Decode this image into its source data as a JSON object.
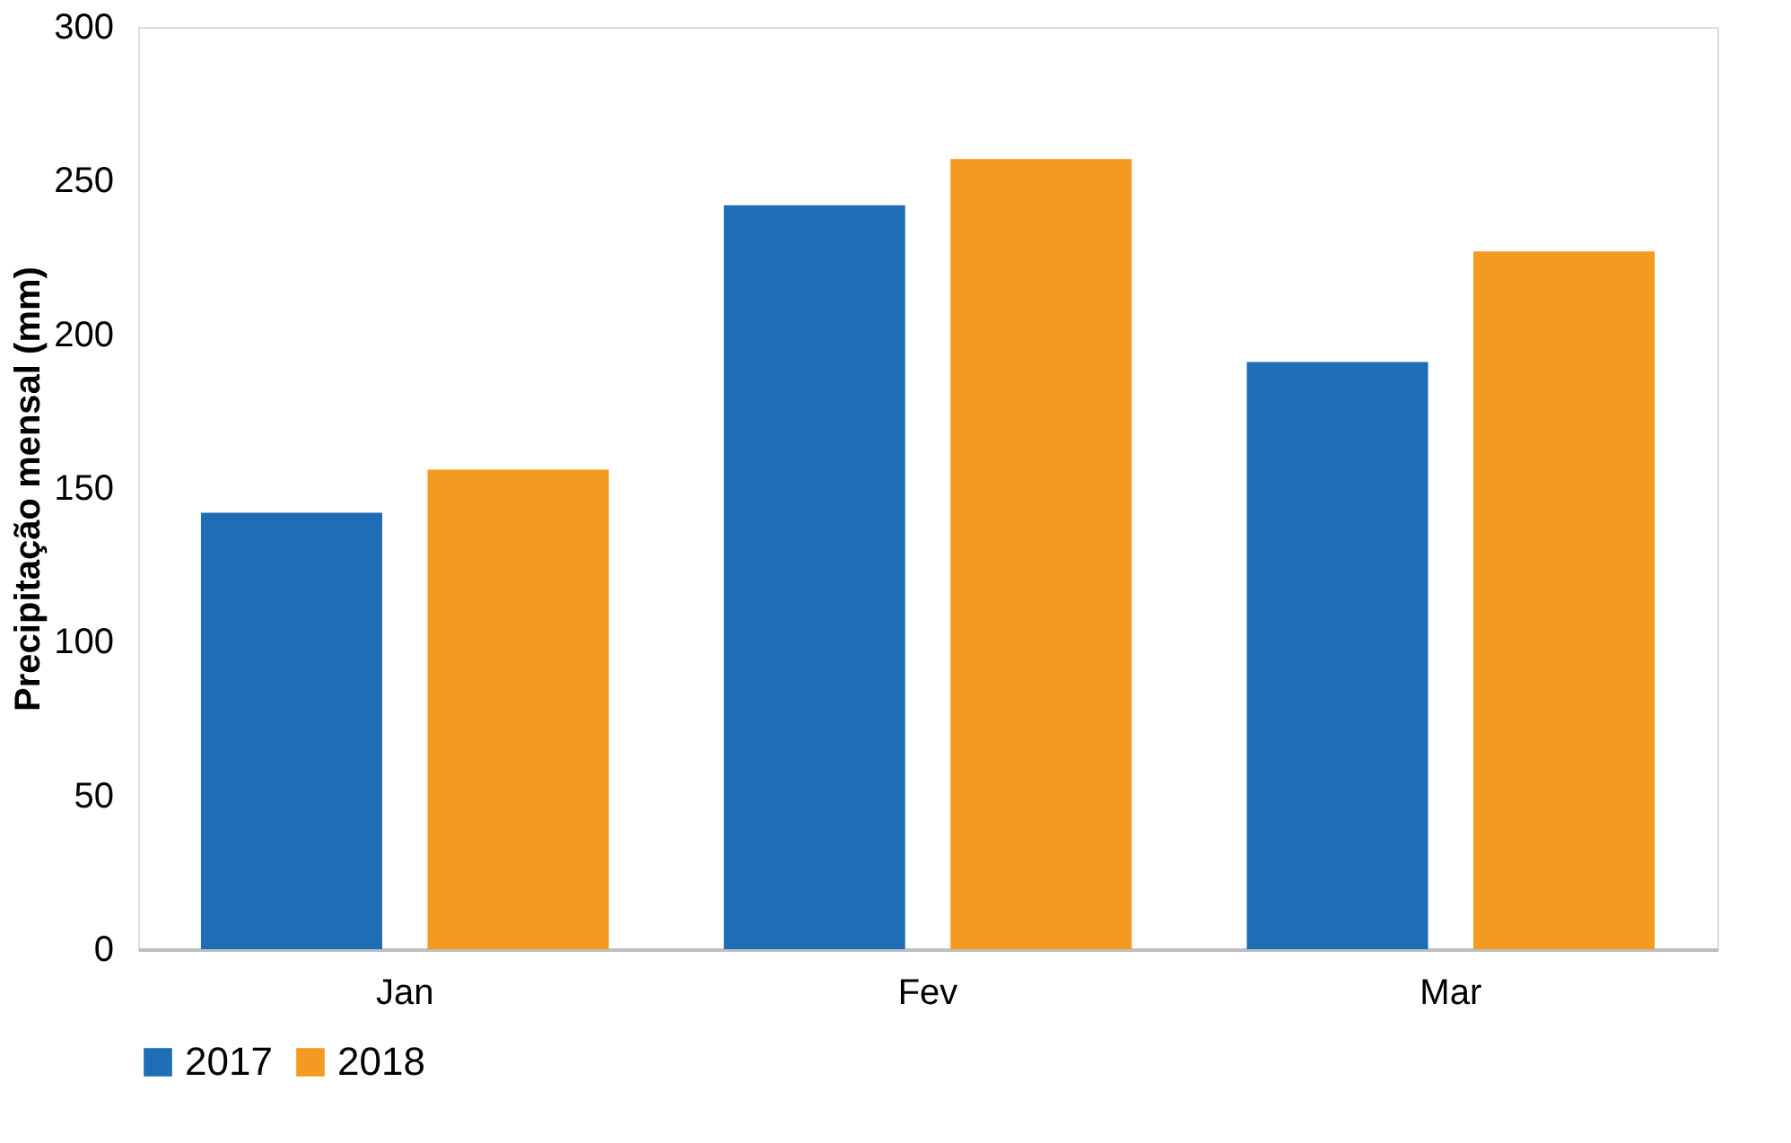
{
  "chart_data": {
    "type": "bar",
    "ylabel": "Precipitação mensal (mm)",
    "categories": [
      "Jan",
      "Fev",
      "Mar"
    ],
    "series": [
      {
        "name": "2017",
        "color": "#1f6db4",
        "values": [
          142,
          242,
          191
        ]
      },
      {
        "name": "2018",
        "color": "#f39a21",
        "values": [
          156,
          257,
          227
        ]
      }
    ],
    "ylim": [
      0,
      300
    ],
    "yticks": [
      0,
      50,
      100,
      150,
      200,
      250,
      300
    ],
    "grid": false,
    "legend": "bottom"
  }
}
